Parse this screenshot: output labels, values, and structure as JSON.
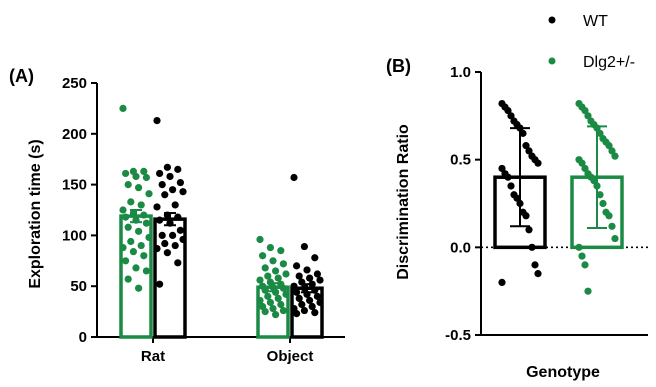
{
  "colors": {
    "wt": "#000000",
    "dlg2": "#1a8a45"
  },
  "legend": [
    {
      "name": "WT",
      "color": "#000000"
    },
    {
      "name": "Dlg2+/-",
      "color": "#1a8a45"
    }
  ],
  "chart_data": [
    {
      "panel": "(A)",
      "type": "bar",
      "ylabel": "Exploration time (s)",
      "xlabel": "",
      "ylim": [
        0,
        250
      ],
      "yticks": [
        "0",
        "50",
        "100",
        "150",
        "200",
        "250"
      ],
      "yticks_values": [
        0,
        50,
        100,
        150,
        200,
        250
      ],
      "categories": [
        "Rat",
        "Object"
      ],
      "series": [
        {
          "name": "Dlg2+/-",
          "values": [
            119,
            49
          ],
          "sem": [
            6,
            4
          ],
          "points": [
            [
              225,
              163,
              163,
              161,
              158,
              157,
              150,
              147,
              141,
              133,
              130,
              125,
              122,
              120,
              118,
              115,
              112,
              108,
              104,
              98,
              94,
              90,
              88,
              84,
              80,
              75,
              68,
              65,
              57,
              48
            ],
            [
              96,
              88,
              85,
              80,
              75,
              72,
              68,
              65,
              62,
              60,
              58,
              56,
              54,
              52,
              50,
              49,
              48,
              46,
              44,
              42,
              40,
              38,
              36,
              34,
              32,
              30,
              28,
              26,
              25,
              22
            ]
          ]
        },
        {
          "name": "WT",
          "values": [
            116,
            48
          ],
          "sem": [
            6,
            4
          ],
          "points": [
            [
              213,
              167,
              165,
              161,
              158,
              152,
              150,
              145,
              143,
              140,
              130,
              128,
              120,
              118,
              115,
              112,
              105,
              100,
              100,
              96,
              92,
              90,
              87,
              83,
              73,
              52
            ],
            [
              157,
              89,
              78,
              70,
              66,
              62,
              60,
              58,
              56,
              54,
              52,
              50,
              48,
              46,
              44,
              42,
              40,
              38,
              36,
              34,
              32,
              30,
              28,
              26,
              24,
              23
            ]
          ]
        }
      ]
    },
    {
      "panel": "(B)",
      "type": "bar",
      "ylabel": "Discrimination Ratio",
      "xlabel": "Genotype",
      "ylim": [
        -0.5,
        1.0
      ],
      "yticks": [
        "-0.5",
        "0.0",
        "0.5",
        "1.0"
      ],
      "yticks_values": [
        -0.5,
        0.0,
        0.5,
        1.0
      ],
      "categories": [
        ""
      ],
      "series": [
        {
          "name": "WT",
          "values": [
            0.4
          ],
          "sd": [
            0.28
          ],
          "points": [
            [
              0.82,
              0.8,
              0.78,
              0.75,
              0.72,
              0.7,
              0.68,
              0.65,
              0.58,
              0.55,
              0.52,
              0.5,
              0.48,
              0.45,
              0.42,
              0.4,
              0.35,
              0.3,
              0.28,
              0.25,
              0.2,
              0.18,
              0.1,
              0.0,
              -0.1,
              -0.15,
              -0.2
            ]
          ]
        },
        {
          "name": "Dlg2+/-",
          "values": [
            0.4
          ],
          "sd": [
            0.29
          ],
          "points": [
            [
              0.82,
              0.8,
              0.78,
              0.75,
              0.72,
              0.7,
              0.68,
              0.65,
              0.62,
              0.6,
              0.58,
              0.55,
              0.52,
              0.5,
              0.48,
              0.45,
              0.42,
              0.4,
              0.38,
              0.35,
              0.3,
              0.25,
              0.2,
              0.18,
              0.12,
              0.05,
              0.0,
              -0.05,
              -0.1,
              -0.25
            ]
          ]
        }
      ]
    }
  ]
}
